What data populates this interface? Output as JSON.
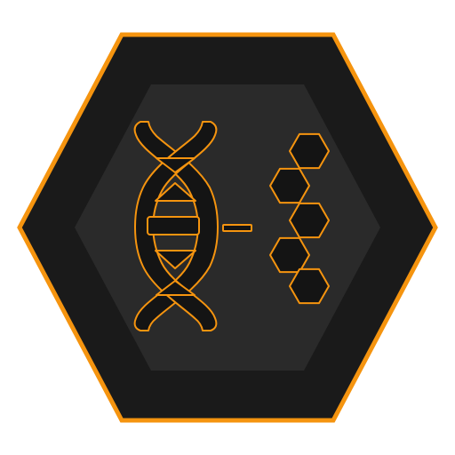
{
  "icon": {
    "name": "dna-to-molecule-icon",
    "description_icons": [
      "dna-helix-icon",
      "dash-icon",
      "hexagon-chain-icon"
    ]
  },
  "colors": {
    "background": "#ffffff",
    "outer_fill": "#1a1a1a",
    "inner_fill": "#2a2a2a",
    "accent": "#f5940f",
    "glyph_fill": "#141414"
  }
}
